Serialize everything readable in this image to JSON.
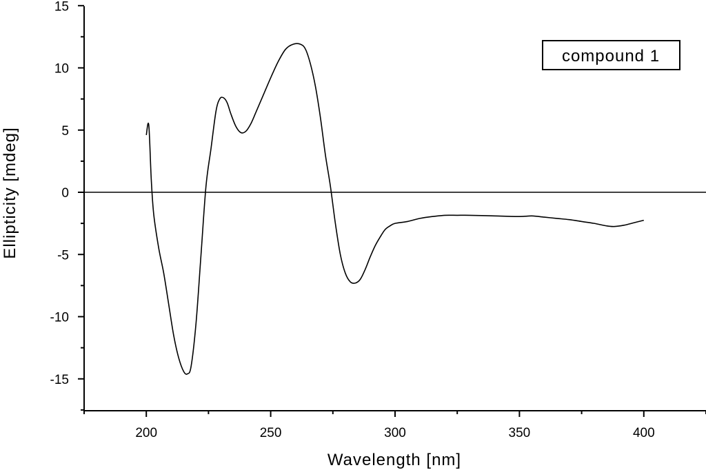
{
  "chart_data": {
    "type": "line",
    "xlabel": "Wavelength [nm]",
    "ylabel": "Ellipticity [mdeg]",
    "xlim": [
      175,
      425
    ],
    "ylim": [
      -17.5,
      15
    ],
    "xticks": [
      200,
      250,
      300,
      350,
      400
    ],
    "yticks": [
      15,
      10,
      5,
      0,
      -5,
      -10,
      -15
    ],
    "grid": false,
    "legend_position": "top-right",
    "zero_line": true,
    "series": [
      {
        "name": "compound 1",
        "x": [
          200,
          201,
          202,
          203,
          205,
          207,
          209,
          211,
          213,
          215,
          216.5,
          218,
          220,
          222,
          224,
          226,
          228,
          229.5,
          231,
          232.5,
          234,
          236,
          238,
          240,
          242,
          244,
          247,
          250,
          253,
          256,
          259,
          262,
          264,
          266,
          268,
          270,
          272,
          274,
          276,
          278,
          280,
          282,
          284,
          286,
          288,
          290,
          292,
          294,
          296,
          298,
          300,
          305,
          310,
          315,
          320,
          325,
          330,
          340,
          350,
          355,
          360,
          365,
          370,
          375,
          380,
          385,
          388,
          392,
          396,
          400
        ],
        "y": [
          4.6,
          5.4,
          1.0,
          -1.8,
          -4.5,
          -6.5,
          -9.0,
          -11.5,
          -13.3,
          -14.4,
          -14.6,
          -14.0,
          -10.5,
          -5.0,
          0.5,
          3.5,
          6.5,
          7.5,
          7.6,
          7.2,
          6.3,
          5.3,
          4.8,
          4.9,
          5.5,
          6.4,
          7.8,
          9.2,
          10.5,
          11.5,
          11.9,
          11.9,
          11.5,
          10.3,
          8.5,
          6.0,
          3.0,
          0.5,
          -2.5,
          -5.0,
          -6.5,
          -7.2,
          -7.3,
          -7.0,
          -6.2,
          -5.2,
          -4.3,
          -3.6,
          -3.0,
          -2.7,
          -2.5,
          -2.35,
          -2.1,
          -1.95,
          -1.85,
          -1.85,
          -1.85,
          -1.9,
          -1.95,
          -1.9,
          -2.0,
          -2.1,
          -2.2,
          -2.35,
          -2.5,
          -2.7,
          -2.75,
          -2.65,
          -2.45,
          -2.25
        ]
      }
    ]
  }
}
